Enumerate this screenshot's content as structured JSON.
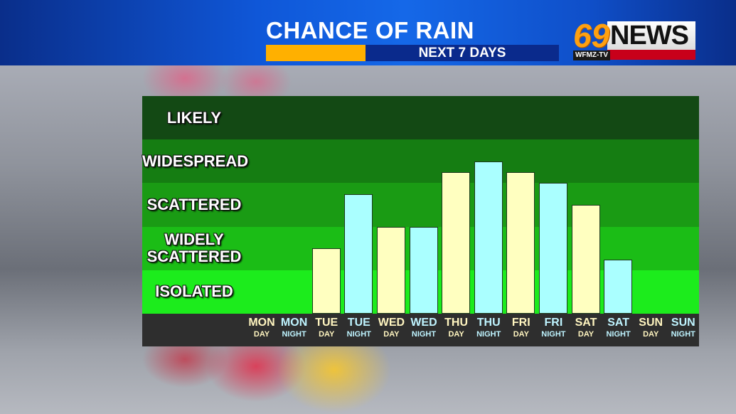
{
  "header": {
    "title": "CHANCE OF RAIN",
    "subtitle": "NEXT 7 DAYS",
    "logo": {
      "number": "69",
      "word": "NEWS",
      "callsign": "WFMZ-TV"
    }
  },
  "colors": {
    "day_bar": "#ffffc0",
    "night_bar": "#aaffff",
    "day_label": "#fff5c0",
    "night_label": "#bff4ff",
    "bands": [
      "#1cec1c",
      "#1bbd16",
      "#1a9b14",
      "#157d12",
      "#134914"
    ]
  },
  "chart_data": {
    "type": "bar",
    "title": "CHANCE OF RAIN - NEXT 7 DAYS",
    "xlabel": "",
    "ylabel": "",
    "ylim": [
      0,
      5
    ],
    "y_categories": [
      "ISOLATED",
      "WIDELY SCATTERED",
      "SCATTERED",
      "WIDESPREAD",
      "LIKELY"
    ],
    "categories": [
      "MON DAY",
      "MON NIGHT",
      "TUE DAY",
      "TUE NIGHT",
      "WED DAY",
      "WED NIGHT",
      "THU DAY",
      "THU NIGHT",
      "FRI DAY",
      "FRI NIGHT",
      "SAT DAY",
      "SAT NIGHT",
      "SUN DAY",
      "SUN NIGHT"
    ],
    "values": [
      0,
      0,
      1.5,
      2.75,
      2.0,
      2.0,
      3.25,
      3.5,
      3.25,
      3.0,
      2.5,
      1.25,
      0,
      0
    ],
    "grid": false,
    "legend": null
  },
  "bands": [
    {
      "label": "LIKELY"
    },
    {
      "label": "WIDESPREAD"
    },
    {
      "label": "SCATTERED"
    },
    {
      "label": "WIDELY\nSCATTERED"
    },
    {
      "label": "ISOLATED"
    }
  ],
  "ticks": [
    {
      "day": "MON",
      "period": "DAY"
    },
    {
      "day": "MON",
      "period": "NIGHT"
    },
    {
      "day": "TUE",
      "period": "DAY"
    },
    {
      "day": "TUE",
      "period": "NIGHT"
    },
    {
      "day": "WED",
      "period": "DAY"
    },
    {
      "day": "WED",
      "period": "NIGHT"
    },
    {
      "day": "THU",
      "period": "DAY"
    },
    {
      "day": "THU",
      "period": "NIGHT"
    },
    {
      "day": "FRI",
      "period": "DAY"
    },
    {
      "day": "FRI",
      "period": "NIGHT"
    },
    {
      "day": "SAT",
      "period": "DAY"
    },
    {
      "day": "SAT",
      "period": "NIGHT"
    },
    {
      "day": "SUN",
      "period": "DAY"
    },
    {
      "day": "SUN",
      "period": "NIGHT"
    }
  ]
}
